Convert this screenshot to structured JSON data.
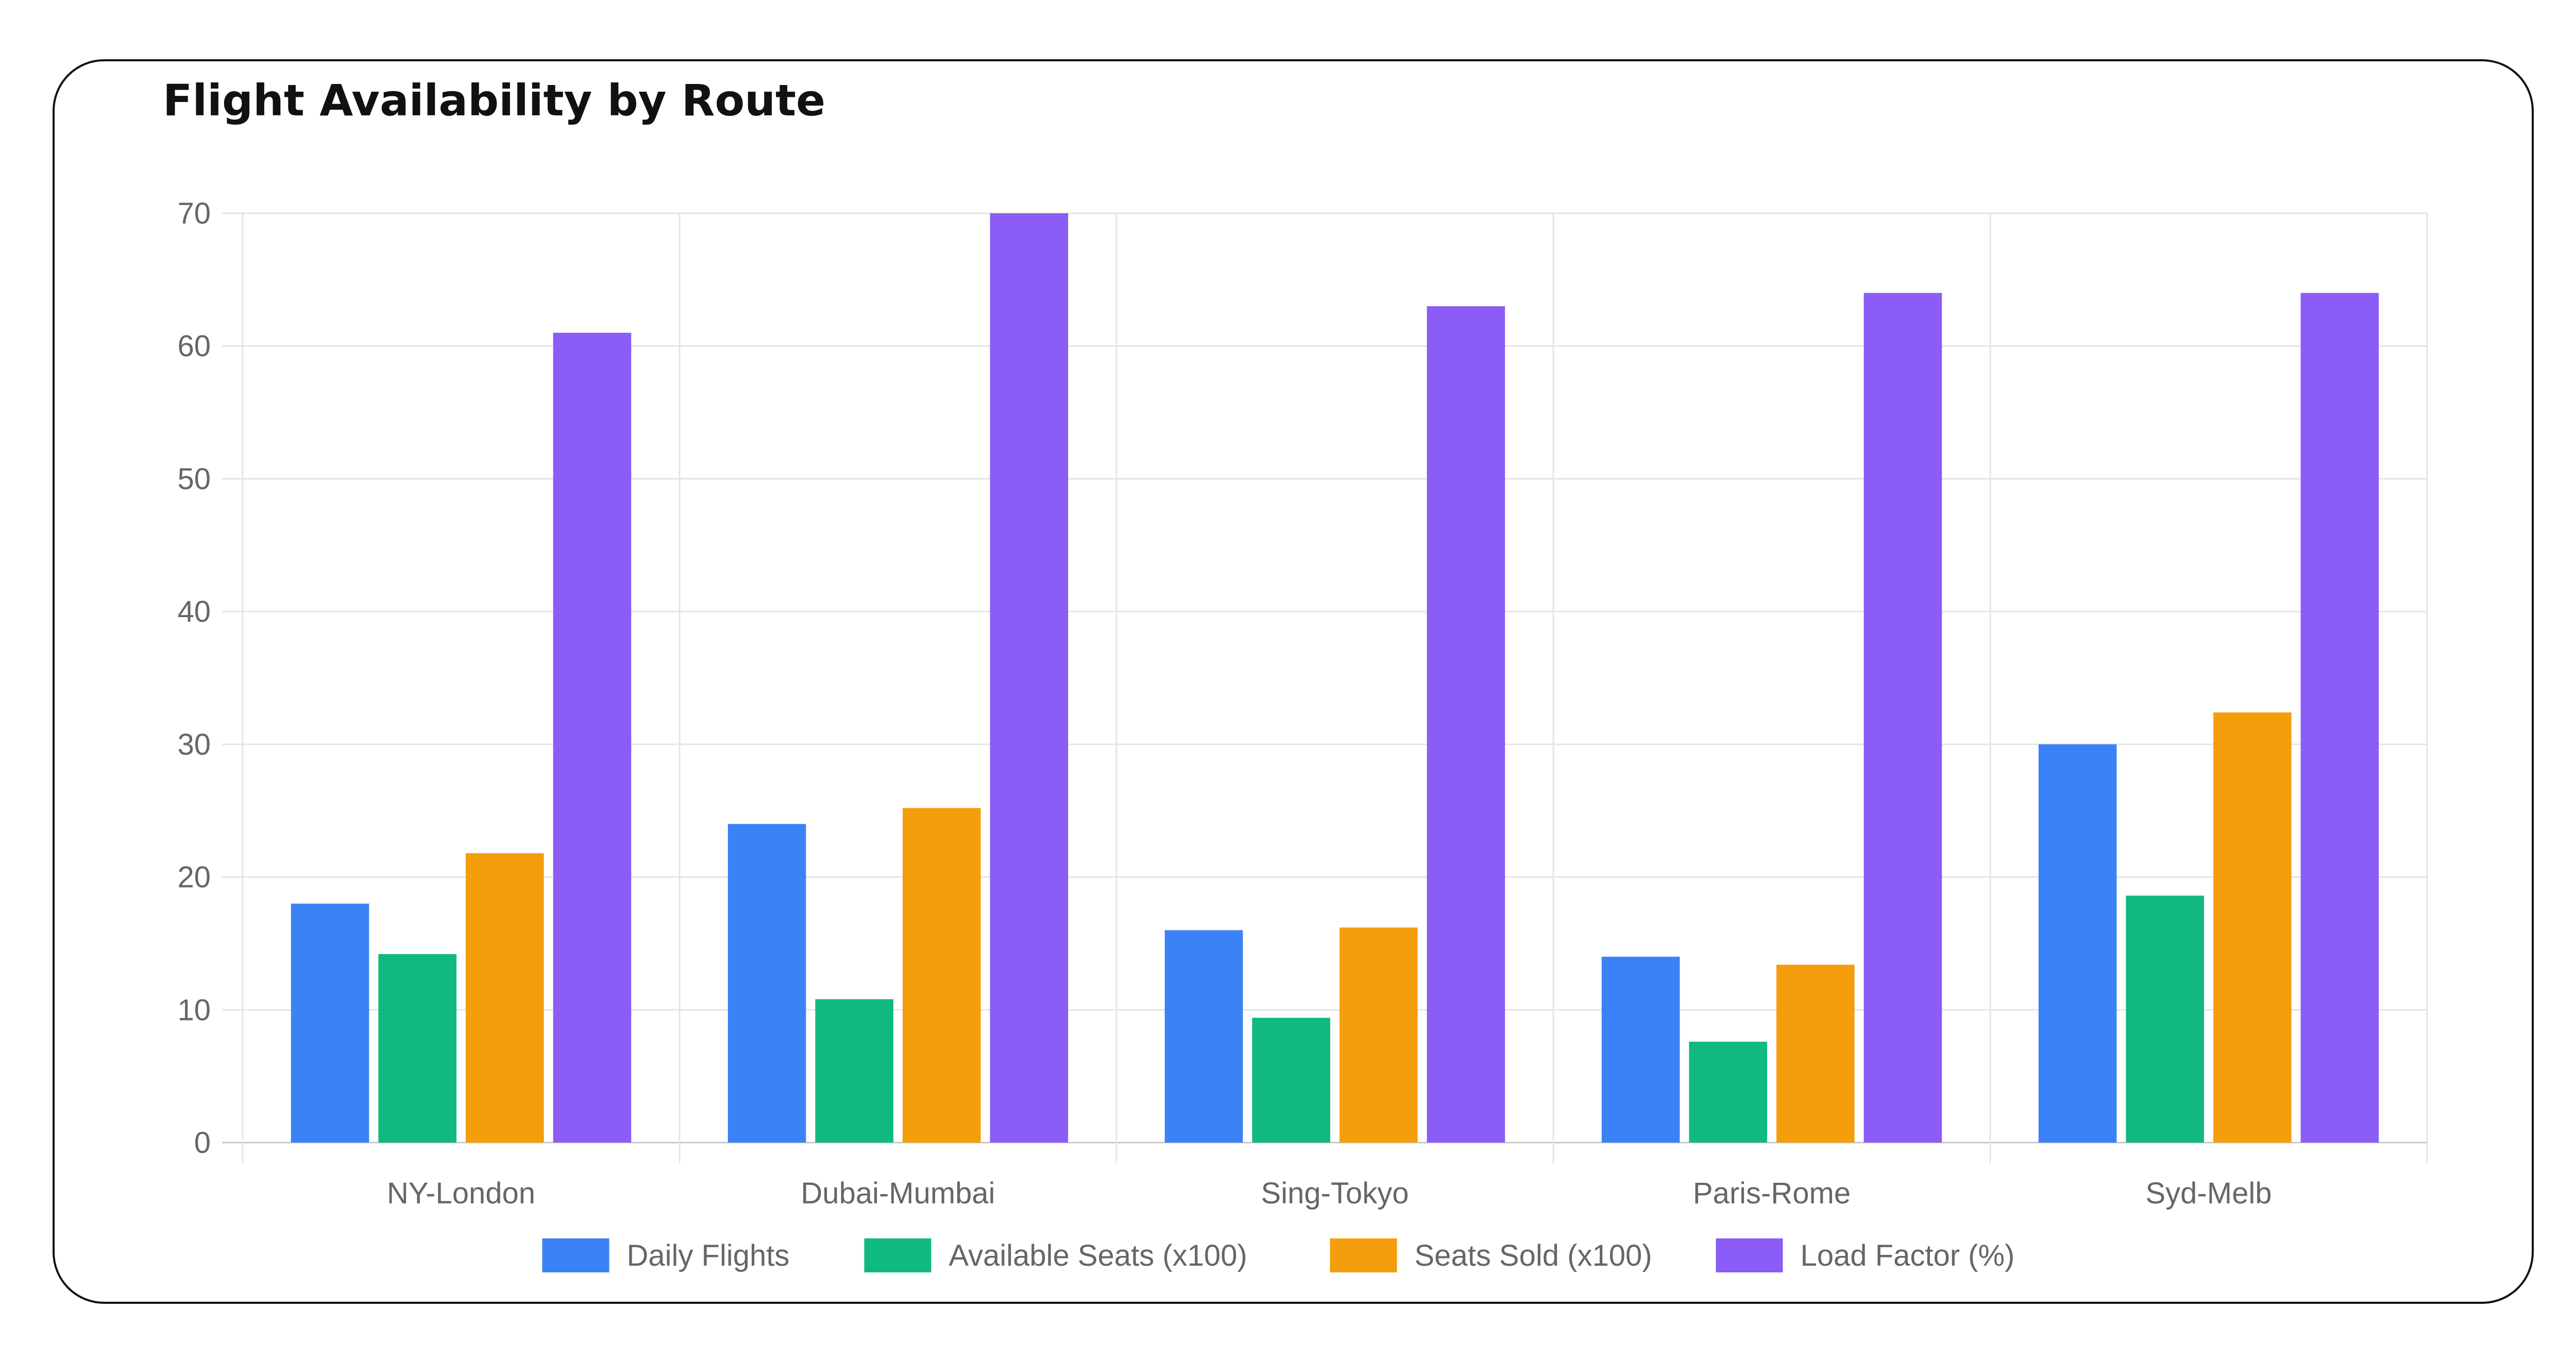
{
  "chart_data": {
    "type": "bar",
    "title": "Flight Availability by Route",
    "categories": [
      "NY-London",
      "Dubai-Mumbai",
      "Sing-Tokyo",
      "Paris-Rome",
      "Syd-Melb"
    ],
    "series": [
      {
        "name": "Daily Flights",
        "color": "#3b82f6",
        "values": [
          18,
          24,
          16,
          14,
          30
        ]
      },
      {
        "name": "Available Seats (x100)",
        "color": "#10b981",
        "values": [
          14.2,
          10.8,
          9.4,
          7.6,
          18.6
        ]
      },
      {
        "name": "Seats Sold (x100)",
        "color": "#f59e0b",
        "values": [
          21.8,
          25.2,
          16.2,
          13.4,
          32.4
        ]
      },
      {
        "name": "Load Factor (%)",
        "color": "#8b5cf6",
        "values": [
          61,
          70,
          63,
          64,
          64
        ]
      }
    ],
    "ylim": [
      0,
      70
    ],
    "yticks": [
      0,
      10,
      20,
      30,
      40,
      50,
      60,
      70
    ],
    "grid": true,
    "legend_position": "bottom"
  }
}
